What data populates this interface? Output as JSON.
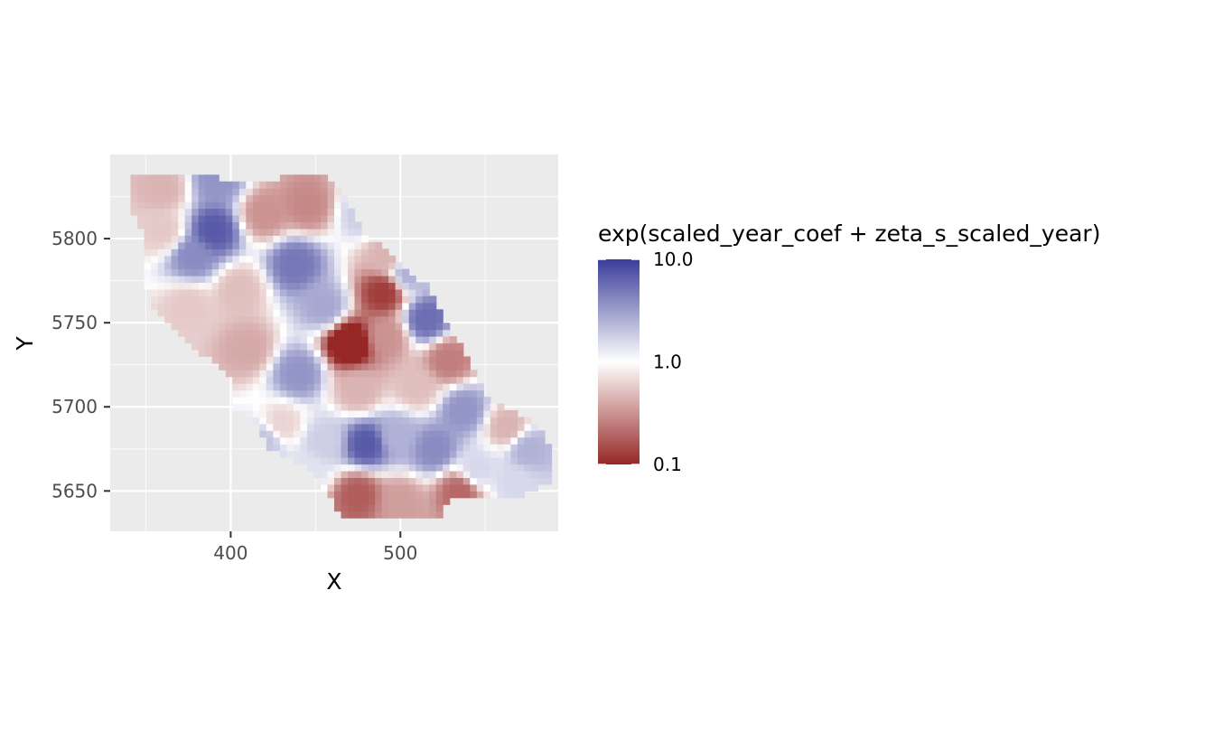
{
  "chart_data": {
    "type": "heatmap",
    "xlabel": "X",
    "ylabel": "Y",
    "xlim": [
      329,
      593
    ],
    "ylim": [
      5626,
      5850
    ],
    "x_ticks": [
      400,
      500
    ],
    "x_minor": [
      350,
      450,
      550
    ],
    "y_ticks": [
      5650,
      5700,
      5750,
      5800
    ],
    "y_minor": [
      5675,
      5725,
      5775,
      5825
    ],
    "grid": true,
    "legend": {
      "title": "exp(scaled_year_coef + zeta_s_scaled_year)",
      "placement": "right",
      "scale": "log10",
      "ticks": [
        {
          "value": 10.0,
          "label": "10.0"
        },
        {
          "value": 1.0,
          "label": "1.0"
        },
        {
          "value": 0.1,
          "label": "0.1"
        }
      ],
      "colors": {
        "high": "#3a3d99",
        "mid": "#ffffff",
        "low": "#962725"
      }
    },
    "domain_outline": [
      [
        342,
        5840
      ],
      [
        390,
        5840
      ],
      [
        395,
        5833
      ],
      [
        455,
        5838
      ],
      [
        464,
        5830
      ],
      [
        477,
        5805
      ],
      [
        518,
        5770
      ],
      [
        530,
        5745
      ],
      [
        545,
        5720
      ],
      [
        550,
        5705
      ],
      [
        578,
        5692
      ],
      [
        588,
        5678
      ],
      [
        587,
        5655
      ],
      [
        575,
        5648
      ],
      [
        528,
        5645
      ],
      [
        525,
        5636
      ],
      [
        465,
        5636
      ],
      [
        455,
        5650
      ],
      [
        450,
        5660
      ],
      [
        440,
        5666
      ],
      [
        422,
        5676
      ],
      [
        415,
        5690
      ],
      [
        402,
        5700
      ],
      [
        401,
        5718
      ],
      [
        390,
        5726
      ],
      [
        373,
        5738
      ],
      [
        352,
        5760
      ],
      [
        348,
        5805
      ],
      [
        342,
        5818
      ]
    ],
    "values_log10": [
      {
        "x": 360,
        "y": 5830,
        "v": -0.35
      },
      {
        "x": 392,
        "y": 5835,
        "v": 0.55
      },
      {
        "x": 390,
        "y": 5805,
        "v": 0.85
      },
      {
        "x": 378,
        "y": 5790,
        "v": 0.6
      },
      {
        "x": 360,
        "y": 5805,
        "v": -0.25
      },
      {
        "x": 420,
        "y": 5815,
        "v": -0.5
      },
      {
        "x": 445,
        "y": 5820,
        "v": -0.55
      },
      {
        "x": 438,
        "y": 5785,
        "v": 0.7
      },
      {
        "x": 455,
        "y": 5760,
        "v": 0.45
      },
      {
        "x": 478,
        "y": 5815,
        "v": 0.25
      },
      {
        "x": 505,
        "y": 5780,
        "v": 0.4
      },
      {
        "x": 492,
        "y": 5790,
        "v": -0.35
      },
      {
        "x": 490,
        "y": 5768,
        "v": -0.9
      },
      {
        "x": 405,
        "y": 5770,
        "v": -0.3
      },
      {
        "x": 375,
        "y": 5760,
        "v": -0.25
      },
      {
        "x": 410,
        "y": 5735,
        "v": -0.4
      },
      {
        "x": 470,
        "y": 5738,
        "v": -1.2
      },
      {
        "x": 492,
        "y": 5742,
        "v": -0.5
      },
      {
        "x": 515,
        "y": 5752,
        "v": 0.75
      },
      {
        "x": 528,
        "y": 5728,
        "v": -0.6
      },
      {
        "x": 440,
        "y": 5720,
        "v": 0.55
      },
      {
        "x": 475,
        "y": 5710,
        "v": -0.35
      },
      {
        "x": 510,
        "y": 5712,
        "v": -0.3
      },
      {
        "x": 537,
        "y": 5698,
        "v": 0.55
      },
      {
        "x": 563,
        "y": 5688,
        "v": -0.35
      },
      {
        "x": 575,
        "y": 5675,
        "v": 0.4
      },
      {
        "x": 480,
        "y": 5678,
        "v": 0.85
      },
      {
        "x": 455,
        "y": 5680,
        "v": 0.25
      },
      {
        "x": 520,
        "y": 5675,
        "v": 0.6
      },
      {
        "x": 545,
        "y": 5663,
        "v": 0.2
      },
      {
        "x": 498,
        "y": 5683,
        "v": 0.4
      },
      {
        "x": 430,
        "y": 5690,
        "v": -0.2
      },
      {
        "x": 420,
        "y": 5680,
        "v": 0.3
      },
      {
        "x": 475,
        "y": 5648,
        "v": -0.75
      },
      {
        "x": 500,
        "y": 5644,
        "v": -0.45
      },
      {
        "x": 445,
        "y": 5662,
        "v": 0.15
      },
      {
        "x": 535,
        "y": 5650,
        "v": -0.7
      },
      {
        "x": 568,
        "y": 5655,
        "v": 0.2
      }
    ]
  }
}
